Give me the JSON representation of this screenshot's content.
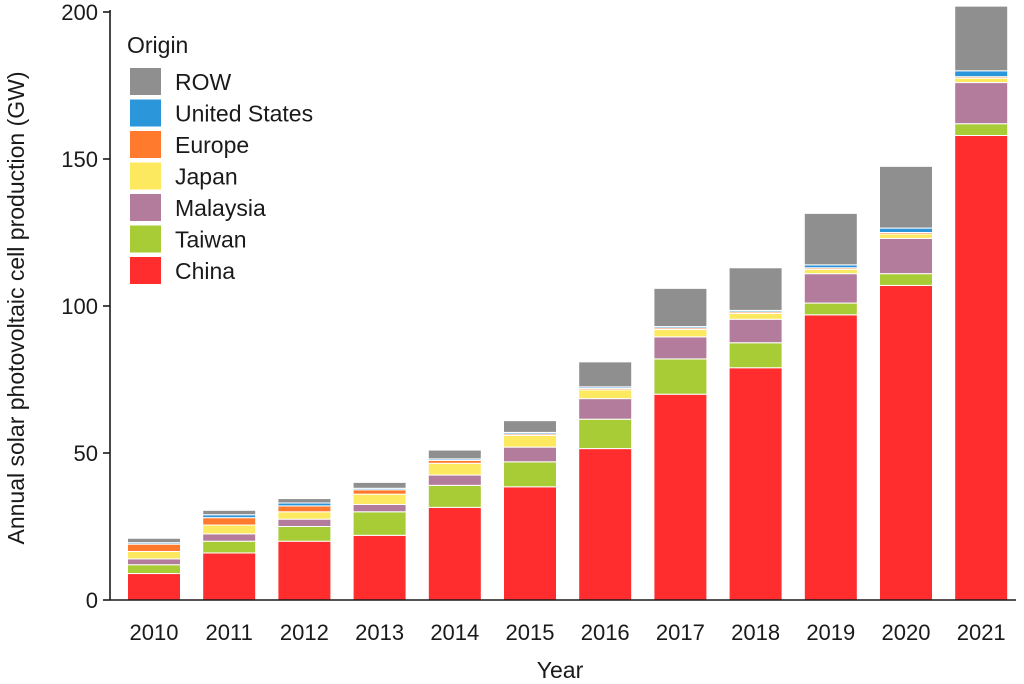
{
  "chart_data": {
    "type": "bar",
    "stacked": true,
    "title": "",
    "xlabel": "Year",
    "ylabel": "Annual solar photovoltaic cell production (GW)",
    "ylim": [
      0,
      200
    ],
    "yticks": [
      "0",
      "50",
      "100",
      "150",
      "200"
    ],
    "grid": false,
    "legend_title": "Origin",
    "legend_position": "top-left",
    "categories": [
      "2010",
      "2011",
      "2012",
      "2013",
      "2014",
      "2015",
      "2016",
      "2017",
      "2018",
      "2019",
      "2020",
      "2021"
    ],
    "series": [
      {
        "name": "China",
        "color": "#ff2d2d",
        "values": [
          9,
          16,
          20,
          22,
          31.5,
          38.5,
          51.5,
          70,
          79,
          97,
          107,
          158
        ]
      },
      {
        "name": "Taiwan",
        "color": "#a8cc36",
        "values": [
          3,
          4,
          5,
          8,
          7.5,
          8.5,
          10,
          12,
          8.5,
          4,
          4,
          4
        ]
      },
      {
        "name": "Malaysia",
        "color": "#b47c9c",
        "values": [
          2,
          2.5,
          2.5,
          2.5,
          3.5,
          5,
          7,
          7.5,
          8,
          10,
          12,
          14
        ]
      },
      {
        "name": "Japan",
        "color": "#fde960",
        "values": [
          2.5,
          3,
          2.5,
          3.5,
          4,
          4,
          3,
          2.5,
          2,
          1.5,
          1.5,
          1.5
        ]
      },
      {
        "name": "Europe",
        "color": "#ff7a2d",
        "values": [
          2.5,
          2.5,
          2,
          1.5,
          1,
          0.5,
          0.5,
          0.5,
          0.5,
          0.5,
          0.5,
          0.5
        ]
      },
      {
        "name": "United States",
        "color": "#2b96d9",
        "values": [
          0.5,
          1,
          1,
          0.5,
          0.5,
          0.5,
          0.5,
          0.5,
          0.5,
          1,
          1.5,
          2
        ]
      },
      {
        "name": "ROW",
        "color": "#8f8f8f",
        "values": [
          1.5,
          1.5,
          1.5,
          2,
          3,
          4,
          8.5,
          13,
          14.5,
          17.5,
          21,
          22
        ]
      }
    ],
    "legend_order": [
      "ROW",
      "United States",
      "Europe",
      "Japan",
      "Malaysia",
      "Taiwan",
      "China"
    ]
  }
}
